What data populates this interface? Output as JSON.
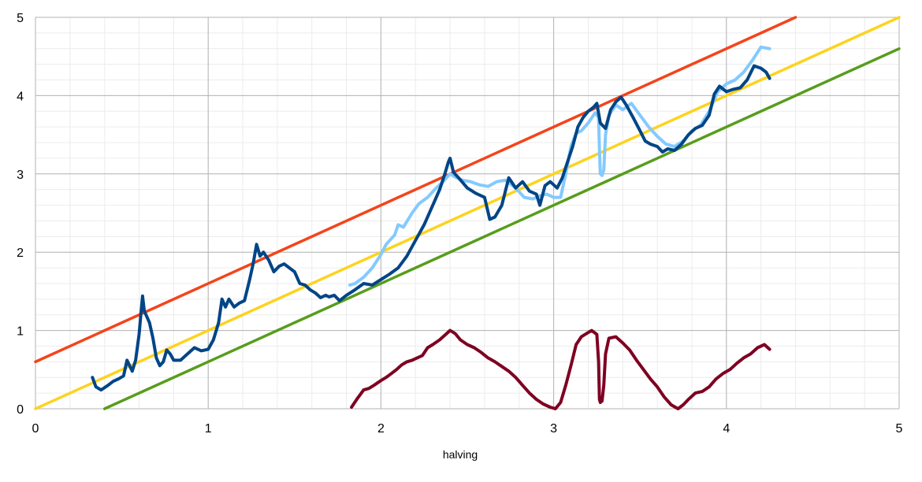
{
  "chart_data": {
    "type": "line",
    "title": "",
    "xlabel": "halving",
    "ylabel": "",
    "xlim": [
      0,
      5
    ],
    "ylim": [
      0,
      5
    ],
    "x_ticks": [
      "0",
      "1",
      "2",
      "3",
      "4",
      "5"
    ],
    "y_ticks": [
      "0",
      "1",
      "2",
      "3",
      "4",
      "5"
    ],
    "grid": true,
    "minor_grid": true,
    "legend": "none",
    "series": [
      {
        "color": "#f4441a",
        "width": 3.5,
        "points": [
          [
            0.0,
            0.6
          ],
          [
            4.4,
            5.0
          ]
        ]
      },
      {
        "color": "#fdd31e",
        "width": 3.5,
        "points": [
          [
            0.0,
            0.0
          ],
          [
            5.0,
            5.0
          ]
        ]
      },
      {
        "color": "#579d1c",
        "width": 3.5,
        "points": [
          [
            0.4,
            0.0
          ],
          [
            5.0,
            4.6
          ]
        ]
      },
      {
        "color": "#83caff",
        "width": 4,
        "points": [
          [
            1.82,
            1.58
          ],
          [
            1.85,
            1.6
          ],
          [
            1.9,
            1.68
          ],
          [
            1.95,
            1.8
          ],
          [
            2.0,
            1.97
          ],
          [
            2.03,
            2.1
          ],
          [
            2.08,
            2.22
          ],
          [
            2.1,
            2.35
          ],
          [
            2.13,
            2.32
          ],
          [
            2.18,
            2.5
          ],
          [
            2.22,
            2.62
          ],
          [
            2.27,
            2.7
          ],
          [
            2.32,
            2.82
          ],
          [
            2.36,
            2.9
          ],
          [
            2.4,
            3.0
          ],
          [
            2.43,
            2.96
          ],
          [
            2.47,
            2.92
          ],
          [
            2.52,
            2.9
          ],
          [
            2.57,
            2.86
          ],
          [
            2.62,
            2.84
          ],
          [
            2.67,
            2.9
          ],
          [
            2.72,
            2.92
          ],
          [
            2.78,
            2.82
          ],
          [
            2.83,
            2.7
          ],
          [
            2.88,
            2.68
          ],
          [
            2.92,
            2.72
          ],
          [
            2.96,
            2.74
          ],
          [
            3.0,
            2.7
          ],
          [
            3.04,
            2.7
          ],
          [
            3.07,
            3.0
          ],
          [
            3.1,
            3.35
          ],
          [
            3.13,
            3.52
          ],
          [
            3.16,
            3.55
          ],
          [
            3.2,
            3.65
          ],
          [
            3.24,
            3.78
          ],
          [
            3.26,
            3.72
          ],
          [
            3.265,
            3.3
          ],
          [
            3.27,
            3.0
          ],
          [
            3.28,
            2.98
          ],
          [
            3.29,
            3.05
          ],
          [
            3.3,
            3.5
          ],
          [
            3.32,
            3.75
          ],
          [
            3.36,
            3.88
          ],
          [
            3.4,
            3.82
          ],
          [
            3.45,
            3.9
          ],
          [
            3.5,
            3.75
          ],
          [
            3.55,
            3.6
          ],
          [
            3.6,
            3.48
          ],
          [
            3.65,
            3.38
          ],
          [
            3.7,
            3.35
          ],
          [
            3.75,
            3.42
          ],
          [
            3.8,
            3.55
          ],
          [
            3.85,
            3.62
          ],
          [
            3.9,
            3.8
          ],
          [
            3.95,
            4.05
          ],
          [
            4.0,
            4.15
          ],
          [
            4.05,
            4.2
          ],
          [
            4.1,
            4.3
          ],
          [
            4.15,
            4.45
          ],
          [
            4.2,
            4.62
          ],
          [
            4.25,
            4.6
          ]
        ]
      },
      {
        "color": "#004586",
        "width": 4,
        "points": [
          [
            0.33,
            0.4
          ],
          [
            0.35,
            0.28
          ],
          [
            0.38,
            0.24
          ],
          [
            0.42,
            0.3
          ],
          [
            0.45,
            0.35
          ],
          [
            0.48,
            0.38
          ],
          [
            0.51,
            0.42
          ],
          [
            0.53,
            0.62
          ],
          [
            0.56,
            0.48
          ],
          [
            0.58,
            0.62
          ],
          [
            0.6,
            0.95
          ],
          [
            0.61,
            1.2
          ],
          [
            0.62,
            1.44
          ],
          [
            0.63,
            1.25
          ],
          [
            0.66,
            1.1
          ],
          [
            0.68,
            0.9
          ],
          [
            0.7,
            0.65
          ],
          [
            0.72,
            0.55
          ],
          [
            0.74,
            0.6
          ],
          [
            0.76,
            0.75
          ],
          [
            0.78,
            0.7
          ],
          [
            0.8,
            0.62
          ],
          [
            0.84,
            0.62
          ],
          [
            0.88,
            0.7
          ],
          [
            0.92,
            0.78
          ],
          [
            0.96,
            0.74
          ],
          [
            1.0,
            0.76
          ],
          [
            1.03,
            0.88
          ],
          [
            1.06,
            1.1
          ],
          [
            1.08,
            1.4
          ],
          [
            1.1,
            1.3
          ],
          [
            1.12,
            1.4
          ],
          [
            1.15,
            1.3
          ],
          [
            1.18,
            1.35
          ],
          [
            1.21,
            1.38
          ],
          [
            1.24,
            1.65
          ],
          [
            1.26,
            1.85
          ],
          [
            1.28,
            2.1
          ],
          [
            1.3,
            1.95
          ],
          [
            1.32,
            2.0
          ],
          [
            1.35,
            1.9
          ],
          [
            1.38,
            1.75
          ],
          [
            1.41,
            1.82
          ],
          [
            1.44,
            1.85
          ],
          [
            1.47,
            1.8
          ],
          [
            1.5,
            1.75
          ],
          [
            1.53,
            1.6
          ],
          [
            1.56,
            1.58
          ],
          [
            1.59,
            1.52
          ],
          [
            1.62,
            1.48
          ],
          [
            1.65,
            1.42
          ],
          [
            1.68,
            1.45
          ],
          [
            1.7,
            1.43
          ],
          [
            1.73,
            1.45
          ],
          [
            1.76,
            1.38
          ],
          [
            1.8,
            1.45
          ],
          [
            1.85,
            1.52
          ],
          [
            1.9,
            1.6
          ],
          [
            1.95,
            1.58
          ],
          [
            2.0,
            1.65
          ],
          [
            2.05,
            1.72
          ],
          [
            2.1,
            1.8
          ],
          [
            2.15,
            1.95
          ],
          [
            2.2,
            2.15
          ],
          [
            2.25,
            2.35
          ],
          [
            2.3,
            2.6
          ],
          [
            2.34,
            2.8
          ],
          [
            2.37,
            3.0
          ],
          [
            2.39,
            3.15
          ],
          [
            2.4,
            3.2
          ],
          [
            2.42,
            3.02
          ],
          [
            2.45,
            2.95
          ],
          [
            2.5,
            2.82
          ],
          [
            2.55,
            2.75
          ],
          [
            2.6,
            2.7
          ],
          [
            2.63,
            2.42
          ],
          [
            2.66,
            2.45
          ],
          [
            2.7,
            2.6
          ],
          [
            2.74,
            2.95
          ],
          [
            2.78,
            2.82
          ],
          [
            2.82,
            2.9
          ],
          [
            2.86,
            2.78
          ],
          [
            2.9,
            2.74
          ],
          [
            2.92,
            2.6
          ],
          [
            2.95,
            2.85
          ],
          [
            2.98,
            2.9
          ],
          [
            3.02,
            2.82
          ],
          [
            3.05,
            2.95
          ],
          [
            3.08,
            3.15
          ],
          [
            3.11,
            3.35
          ],
          [
            3.14,
            3.6
          ],
          [
            3.17,
            3.72
          ],
          [
            3.2,
            3.8
          ],
          [
            3.23,
            3.85
          ],
          [
            3.25,
            3.9
          ],
          [
            3.27,
            3.65
          ],
          [
            3.3,
            3.58
          ],
          [
            3.33,
            3.82
          ],
          [
            3.36,
            3.92
          ],
          [
            3.39,
            3.98
          ],
          [
            3.42,
            3.88
          ],
          [
            3.46,
            3.72
          ],
          [
            3.5,
            3.55
          ],
          [
            3.53,
            3.42
          ],
          [
            3.56,
            3.38
          ],
          [
            3.6,
            3.35
          ],
          [
            3.63,
            3.28
          ],
          [
            3.66,
            3.32
          ],
          [
            3.7,
            3.3
          ],
          [
            3.74,
            3.38
          ],
          [
            3.78,
            3.5
          ],
          [
            3.82,
            3.58
          ],
          [
            3.86,
            3.62
          ],
          [
            3.9,
            3.75
          ],
          [
            3.93,
            4.02
          ],
          [
            3.96,
            4.12
          ],
          [
            4.0,
            4.05
          ],
          [
            4.04,
            4.08
          ],
          [
            4.08,
            4.1
          ],
          [
            4.12,
            4.2
          ],
          [
            4.16,
            4.38
          ],
          [
            4.2,
            4.35
          ],
          [
            4.23,
            4.3
          ],
          [
            4.25,
            4.22
          ]
        ]
      },
      {
        "color": "#7e0021",
        "width": 4,
        "points": [
          [
            1.83,
            0.02
          ],
          [
            1.86,
            0.12
          ],
          [
            1.9,
            0.24
          ],
          [
            1.93,
            0.26
          ],
          [
            1.96,
            0.3
          ],
          [
            2.0,
            0.36
          ],
          [
            2.03,
            0.4
          ],
          [
            2.06,
            0.45
          ],
          [
            2.09,
            0.5
          ],
          [
            2.12,
            0.56
          ],
          [
            2.15,
            0.6
          ],
          [
            2.18,
            0.62
          ],
          [
            2.21,
            0.65
          ],
          [
            2.24,
            0.68
          ],
          [
            2.27,
            0.78
          ],
          [
            2.3,
            0.82
          ],
          [
            2.34,
            0.88
          ],
          [
            2.38,
            0.96
          ],
          [
            2.4,
            1.0
          ],
          [
            2.43,
            0.96
          ],
          [
            2.46,
            0.88
          ],
          [
            2.5,
            0.82
          ],
          [
            2.54,
            0.78
          ],
          [
            2.58,
            0.72
          ],
          [
            2.62,
            0.65
          ],
          [
            2.66,
            0.6
          ],
          [
            2.7,
            0.54
          ],
          [
            2.74,
            0.48
          ],
          [
            2.78,
            0.4
          ],
          [
            2.82,
            0.3
          ],
          [
            2.86,
            0.2
          ],
          [
            2.9,
            0.12
          ],
          [
            2.94,
            0.06
          ],
          [
            2.98,
            0.02
          ],
          [
            3.01,
            0.0
          ],
          [
            3.04,
            0.08
          ],
          [
            3.07,
            0.3
          ],
          [
            3.1,
            0.55
          ],
          [
            3.13,
            0.82
          ],
          [
            3.16,
            0.92
          ],
          [
            3.19,
            0.96
          ],
          [
            3.22,
            1.0
          ],
          [
            3.25,
            0.95
          ],
          [
            3.26,
            0.6
          ],
          [
            3.265,
            0.12
          ],
          [
            3.27,
            0.08
          ],
          [
            3.28,
            0.1
          ],
          [
            3.29,
            0.3
          ],
          [
            3.3,
            0.7
          ],
          [
            3.32,
            0.9
          ],
          [
            3.36,
            0.92
          ],
          [
            3.4,
            0.84
          ],
          [
            3.44,
            0.75
          ],
          [
            3.48,
            0.62
          ],
          [
            3.52,
            0.5
          ],
          [
            3.56,
            0.38
          ],
          [
            3.6,
            0.28
          ],
          [
            3.64,
            0.15
          ],
          [
            3.68,
            0.05
          ],
          [
            3.72,
            0.0
          ],
          [
            3.75,
            0.05
          ],
          [
            3.78,
            0.12
          ],
          [
            3.82,
            0.2
          ],
          [
            3.86,
            0.22
          ],
          [
            3.9,
            0.28
          ],
          [
            3.94,
            0.38
          ],
          [
            3.98,
            0.45
          ],
          [
            4.02,
            0.5
          ],
          [
            4.06,
            0.58
          ],
          [
            4.1,
            0.65
          ],
          [
            4.14,
            0.7
          ],
          [
            4.18,
            0.78
          ],
          [
            4.22,
            0.82
          ],
          [
            4.25,
            0.76
          ]
        ]
      }
    ]
  }
}
